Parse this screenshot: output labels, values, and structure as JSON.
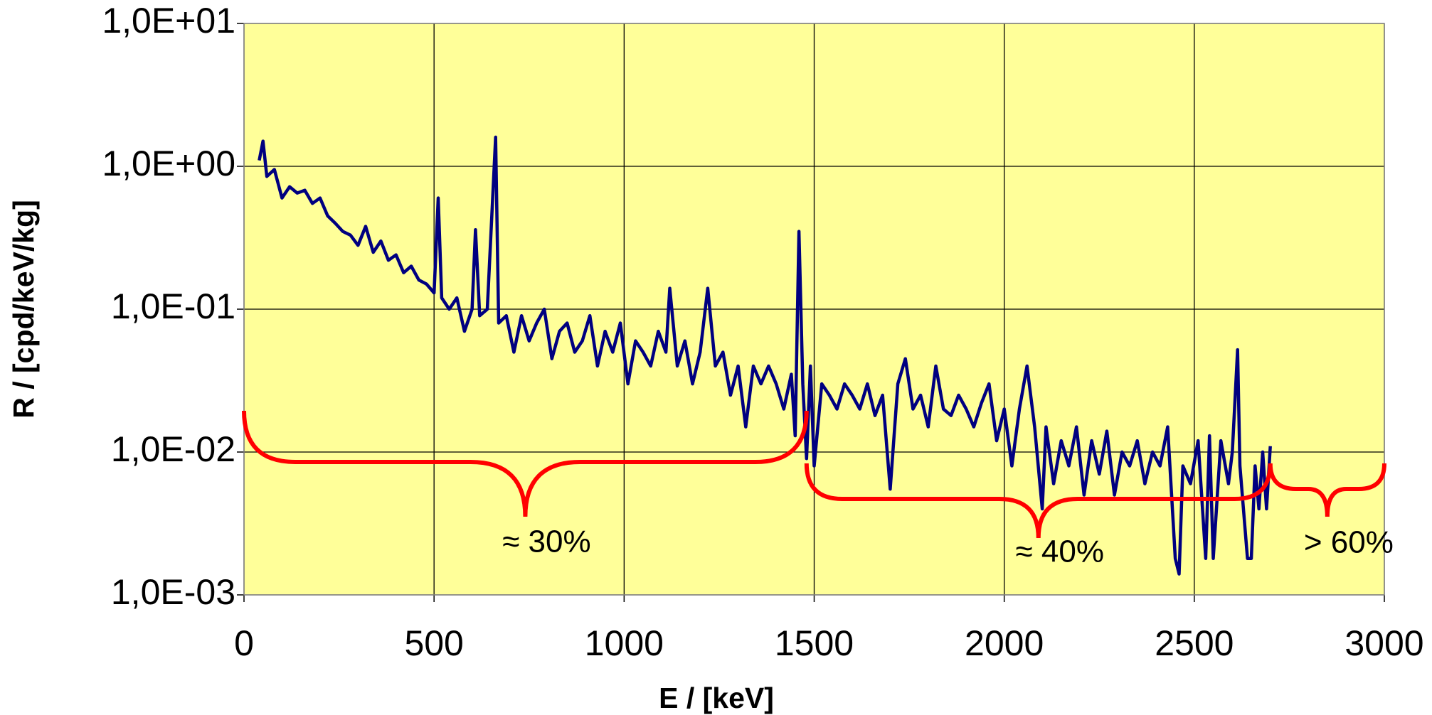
{
  "chart_data": {
    "type": "line",
    "xlabel": "E / [keV]",
    "ylabel": "R / [cpd/keV/kg]",
    "log_y": true,
    "grid": true,
    "background": "#ffff99",
    "xlim": [
      0,
      3000
    ],
    "xticks": [
      0,
      500,
      1000,
      1500,
      2000,
      2500,
      3000
    ],
    "ylim": [
      0.001,
      10
    ],
    "yticks": [
      {
        "value": 0.001,
        "label": "1,0E-03"
      },
      {
        "value": 0.01,
        "label": "1,0E-02"
      },
      {
        "value": 0.1,
        "label": "1,0E-01"
      },
      {
        "value": 1,
        "label": "1,0E+00"
      },
      {
        "value": 10,
        "label": "1,0E+01"
      }
    ],
    "series": [
      {
        "color": "#000080",
        "x": [
          40,
          50,
          60,
          80,
          100,
          120,
          140,
          160,
          180,
          200,
          220,
          240,
          260,
          280,
          300,
          320,
          340,
          360,
          380,
          400,
          420,
          440,
          460,
          480,
          500,
          511,
          520,
          540,
          560,
          580,
          600,
          609,
          620,
          640,
          662,
          670,
          690,
          710,
          730,
          750,
          770,
          790,
          810,
          830,
          850,
          870,
          890,
          910,
          930,
          950,
          970,
          990,
          1010,
          1030,
          1050,
          1070,
          1090,
          1110,
          1120,
          1140,
          1160,
          1180,
          1200,
          1220,
          1240,
          1260,
          1280,
          1300,
          1320,
          1340,
          1360,
          1380,
          1400,
          1420,
          1440,
          1450,
          1460,
          1470,
          1480,
          1490,
          1500,
          1520,
          1540,
          1560,
          1580,
          1600,
          1620,
          1640,
          1660,
          1680,
          1700,
          1720,
          1740,
          1760,
          1780,
          1800,
          1820,
          1840,
          1860,
          1880,
          1900,
          1920,
          1940,
          1960,
          1980,
          2000,
          2020,
          2040,
          2060,
          2080,
          2100,
          2110,
          2130,
          2150,
          2170,
          2190,
          2210,
          2230,
          2250,
          2270,
          2290,
          2310,
          2330,
          2350,
          2370,
          2390,
          2410,
          2430,
          2450,
          2460,
          2470,
          2490,
          2510,
          2530,
          2540,
          2550,
          2570,
          2590,
          2600,
          2614,
          2620,
          2640,
          2650,
          2660,
          2670,
          2680,
          2690,
          2700
        ],
        "values": [
          1.1,
          1.5,
          0.85,
          0.95,
          0.6,
          0.72,
          0.65,
          0.68,
          0.55,
          0.6,
          0.45,
          0.4,
          0.35,
          0.33,
          0.28,
          0.38,
          0.25,
          0.3,
          0.22,
          0.24,
          0.18,
          0.2,
          0.16,
          0.15,
          0.13,
          0.6,
          0.12,
          0.1,
          0.12,
          0.07,
          0.1,
          0.36,
          0.09,
          0.1,
          1.6,
          0.08,
          0.09,
          0.05,
          0.09,
          0.06,
          0.08,
          0.1,
          0.045,
          0.07,
          0.08,
          0.05,
          0.06,
          0.09,
          0.04,
          0.07,
          0.05,
          0.08,
          0.03,
          0.06,
          0.05,
          0.04,
          0.07,
          0.05,
          0.14,
          0.04,
          0.06,
          0.03,
          0.05,
          0.14,
          0.04,
          0.05,
          0.025,
          0.04,
          0.015,
          0.04,
          0.03,
          0.04,
          0.03,
          0.02,
          0.035,
          0.013,
          0.35,
          0.03,
          0.009,
          0.04,
          0.008,
          0.03,
          0.025,
          0.02,
          0.03,
          0.025,
          0.02,
          0.03,
          0.018,
          0.025,
          0.0055,
          0.03,
          0.045,
          0.02,
          0.025,
          0.015,
          0.04,
          0.02,
          0.018,
          0.025,
          0.02,
          0.015,
          0.022,
          0.03,
          0.012,
          0.02,
          0.008,
          0.02,
          0.04,
          0.015,
          0.004,
          0.015,
          0.006,
          0.012,
          0.008,
          0.015,
          0.005,
          0.012,
          0.007,
          0.014,
          0.005,
          0.01,
          0.008,
          0.012,
          0.006,
          0.01,
          0.008,
          0.015,
          0.0018,
          0.0014,
          0.008,
          0.006,
          0.012,
          0.0018,
          0.013,
          0.0018,
          0.012,
          0.006,
          0.01,
          0.052,
          0.008,
          0.0018,
          0.0018,
          0.008,
          0.004,
          0.01,
          0.004,
          0.011
        ]
      }
    ],
    "annotations": [
      {
        "text": "≈ 30%",
        "x_range": [
          0,
          1480
        ],
        "color": "#ff0000"
      },
      {
        "text": "≈ 40%",
        "x_range": [
          1480,
          2700
        ],
        "color": "#ff0000"
      },
      {
        "text": "> 60%",
        "x_range": [
          2700,
          3000
        ],
        "color": "#ff0000"
      }
    ]
  }
}
